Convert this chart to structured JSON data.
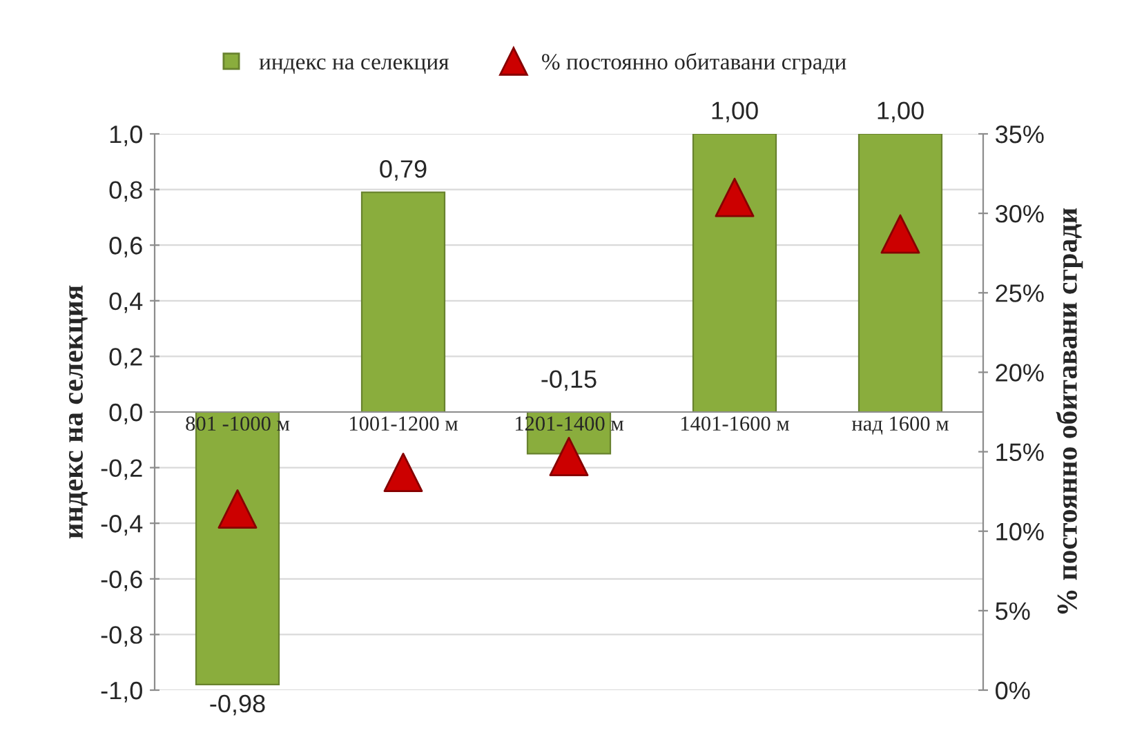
{
  "chart_data": {
    "type": "bar",
    "categories": [
      "801 -1000 м",
      "1001-1200 м",
      "1201-1400 м",
      "1401-1600 м",
      "над 1600 м"
    ],
    "series": [
      {
        "name": "индекс на селекция",
        "color": "#8aad3d",
        "values": [
          -0.98,
          0.79,
          -0.15,
          1.0,
          1.0
        ],
        "value_labels": [
          "-0,98",
          "0,79",
          "-0,15",
          "1,00",
          "1,00"
        ]
      },
      {
        "name": "% постоянно обитавани сгради",
        "type": "scatter",
        "axis": "y2",
        "color": "#cc0000",
        "marker": "triangle",
        "values": [
          11.4,
          13.7,
          14.7,
          31.0,
          28.7
        ]
      }
    ],
    "ylabel": "индекс на селекция",
    "y2label": "% постоянно обитавани сгради",
    "ylim": [
      -1,
      1
    ],
    "yticks": [
      {
        "value": -1,
        "label": "-1,0"
      },
      {
        "value": -0.8,
        "label": "-0,8"
      },
      {
        "value": -0.6,
        "label": "-0,6"
      },
      {
        "value": -0.4,
        "label": "-0,4"
      },
      {
        "value": -0.2,
        "label": "-0,2"
      },
      {
        "value": 0,
        "label": "0,0"
      },
      {
        "value": 0.2,
        "label": "0,2"
      },
      {
        "value": 0.4,
        "label": "0,4"
      },
      {
        "value": 0.6,
        "label": "0,6"
      },
      {
        "value": 0.8,
        "label": "0,8"
      },
      {
        "value": 1,
        "label": "1,0"
      }
    ],
    "y2lim": [
      0,
      35
    ],
    "y2ticks": [
      {
        "value": 0,
        "label": "0%"
      },
      {
        "value": 5,
        "label": "5%"
      },
      {
        "value": 10,
        "label": "10%"
      },
      {
        "value": 15,
        "label": "15%"
      },
      {
        "value": 20,
        "label": "20%"
      },
      {
        "value": 25,
        "label": "25%"
      },
      {
        "value": 30,
        "label": "30%"
      },
      {
        "value": 35,
        "label": "35%"
      }
    ],
    "grid": "y",
    "legend": "top"
  }
}
